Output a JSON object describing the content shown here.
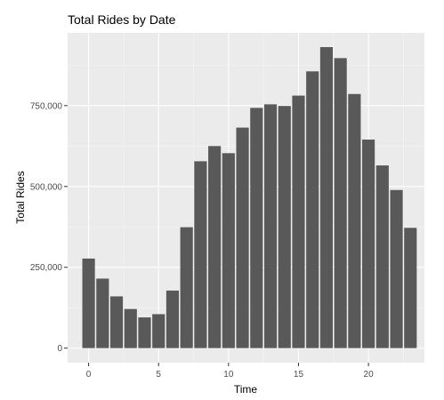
{
  "chart_data": {
    "type": "bar",
    "title": "Total Rides by Date",
    "xlabel": "Time",
    "ylabel": "Total Rides",
    "x": [
      0,
      1,
      2,
      3,
      4,
      5,
      6,
      7,
      8,
      9,
      10,
      11,
      12,
      13,
      14,
      15,
      16,
      17,
      18,
      19,
      20,
      21,
      22,
      23
    ],
    "values": [
      277000,
      215000,
      160000,
      121000,
      95000,
      105000,
      178000,
      374000,
      578000,
      625000,
      603000,
      682000,
      743000,
      754000,
      749000,
      781000,
      856000,
      931000,
      897000,
      786000,
      645000,
      565000,
      489000,
      372000
    ],
    "xlim": [
      -1.5,
      24.0
    ],
    "ylim": [
      -45000,
      975000
    ],
    "xticks": [
      0,
      5,
      10,
      15,
      20
    ],
    "xtick_labels": [
      "0",
      "5",
      "10",
      "15",
      "20"
    ],
    "yticks": [
      0,
      250000,
      500000,
      750000
    ],
    "ytick_labels": [
      "0",
      "250,000",
      "500,000",
      "750,000"
    ],
    "grid": true,
    "legend": "none",
    "colors": {
      "bar": "#595959",
      "panel": "#ebebeb",
      "grid_major": "#ffffff",
      "grid_minor": "#f5f5f5",
      "tick": "#333333"
    }
  }
}
